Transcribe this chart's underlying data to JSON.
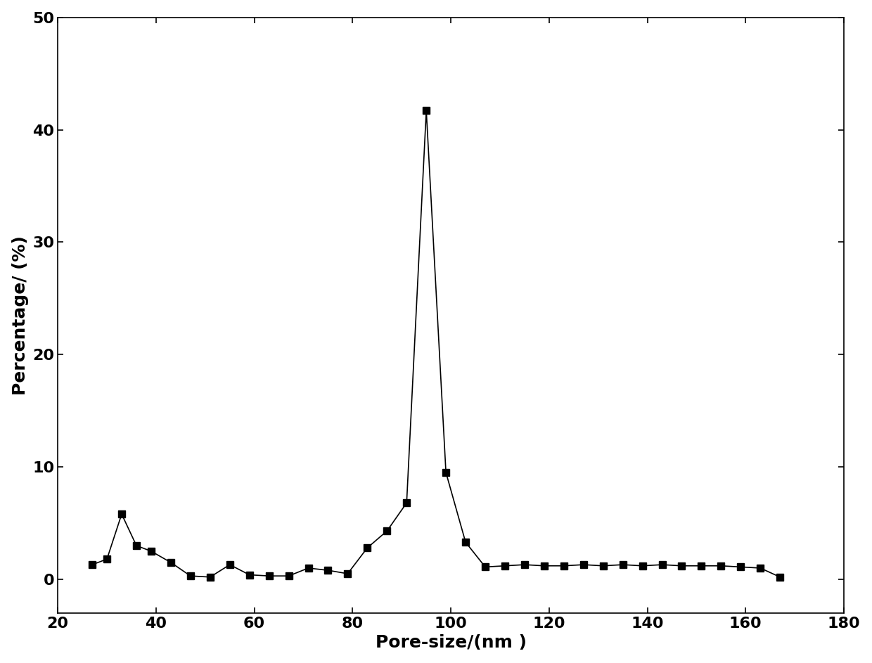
{
  "x": [
    27,
    30,
    33,
    36,
    39,
    43,
    47,
    51,
    55,
    59,
    63,
    67,
    71,
    75,
    79,
    83,
    87,
    91,
    95,
    99,
    103,
    107,
    111,
    115,
    119,
    123,
    127,
    131,
    135,
    139,
    143,
    147,
    151,
    155,
    159,
    163,
    167
  ],
  "y": [
    1.3,
    1.8,
    5.8,
    3.0,
    2.5,
    1.5,
    0.3,
    0.2,
    1.3,
    0.4,
    0.3,
    0.3,
    1.0,
    0.8,
    0.5,
    2.8,
    4.3,
    6.8,
    41.7,
    9.5,
    3.3,
    1.1,
    1.2,
    1.3,
    1.2,
    1.2,
    1.3,
    1.2,
    1.3,
    1.2,
    1.3,
    1.2,
    1.2,
    1.2,
    1.1,
    1.0,
    0.2
  ],
  "xlabel": "Pore-size/(nm）",
  "ylabel": "Percentage/ (%)",
  "xlim": [
    20,
    180
  ],
  "ylim": [
    -3,
    50
  ],
  "xticks": [
    20,
    40,
    60,
    80,
    100,
    120,
    140,
    160,
    180
  ],
  "yticks": [
    0,
    10,
    20,
    30,
    40,
    50
  ],
  "line_color": "#000000",
  "marker": "s",
  "marker_size": 7,
  "linewidth": 1.2,
  "background_color": "#ffffff",
  "label_fontsize": 18,
  "tick_fontsize": 16,
  "font_weight": "bold"
}
